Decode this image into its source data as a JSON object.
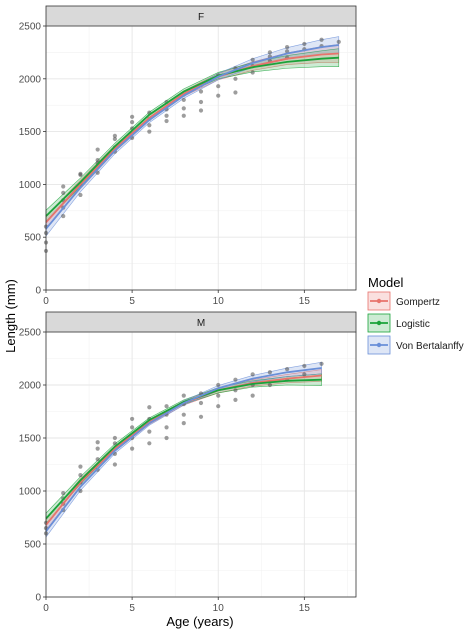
{
  "chart_data": {
    "type": "line",
    "title": "",
    "xlabel": "Age (years)",
    "ylabel": "Length (mm)",
    "xlim": [
      0,
      18
    ],
    "ylim": [
      0,
      2500
    ],
    "x_ticks": [
      0,
      5,
      10,
      15
    ],
    "y_ticks": [
      0,
      500,
      1000,
      1500,
      2000,
      2500
    ],
    "grid": true,
    "legend": {
      "title": "Model",
      "placement": "right",
      "entries": [
        "Gompertz",
        "Logistic",
        "Von Bertalanffy"
      ]
    },
    "colors": {
      "Gompertz": "#e8736c",
      "Logistic": "#1aa33a",
      "Von Bertalanffy": "#6a8fd8",
      "points": "#4d4d4d",
      "strip": "#d9d9d9"
    },
    "panels": [
      {
        "label": "F",
        "series": [
          {
            "name": "Gompertz",
            "x": [
              0,
              2,
              4,
              6,
              8,
              10,
              12,
              14,
              16,
              17
            ],
            "y": [
              640,
              1000,
              1340,
              1630,
              1860,
              2020,
              2120,
              2190,
              2230,
              2240
            ],
            "band": [
              60,
              40,
              30,
              25,
              25,
              30,
              40,
              55,
              75,
              85
            ]
          },
          {
            "name": "Logistic",
            "x": [
              0,
              2,
              4,
              6,
              8,
              10,
              12,
              14,
              16,
              17
            ],
            "y": [
              700,
              1020,
              1360,
              1660,
              1880,
              2030,
              2110,
              2160,
              2190,
              2200
            ],
            "band": [
              55,
              40,
              30,
              25,
              25,
              30,
              45,
              60,
              75,
              85
            ]
          },
          {
            "name": "Von Bertalanffy",
            "x": [
              0,
              2,
              4,
              6,
              8,
              10,
              12,
              14,
              16,
              17
            ],
            "y": [
              580,
              970,
              1320,
              1610,
              1840,
              2020,
              2150,
              2240,
              2300,
              2320
            ],
            "band": [
              70,
              40,
              30,
              25,
              25,
              30,
              40,
              55,
              70,
              80
            ]
          }
        ],
        "points": {
          "x": [
            0,
            0,
            0,
            0,
            1,
            1,
            1,
            1,
            1,
            2,
            2,
            2,
            2,
            3,
            3,
            3,
            3,
            4,
            4,
            4,
            4,
            5,
            5,
            5,
            5,
            5,
            6,
            6,
            6,
            6,
            7,
            7,
            7,
            7,
            8,
            8,
            8,
            8,
            9,
            9,
            9,
            9,
            10,
            10,
            10,
            11,
            11,
            11,
            12,
            12,
            12,
            13,
            13,
            13,
            14,
            14,
            14,
            15,
            15,
            16,
            16,
            17
          ],
          "y": [
            370,
            450,
            540,
            600,
            700,
            780,
            850,
            920,
            980,
            900,
            1000,
            1090,
            1100,
            1110,
            1200,
            1230,
            1330,
            1310,
            1350,
            1430,
            1460,
            1440,
            1480,
            1530,
            1590,
            1640,
            1500,
            1560,
            1620,
            1680,
            1600,
            1650,
            1710,
            1780,
            1650,
            1720,
            1800,
            1850,
            1700,
            1780,
            1880,
            1940,
            1840,
            1930,
            2030,
            1870,
            2000,
            2100,
            2060,
            2120,
            2180,
            2170,
            2210,
            2250,
            2200,
            2260,
            2300,
            2280,
            2330,
            2310,
            2370,
            2350
          ]
        }
      },
      {
        "label": "M",
        "series": [
          {
            "name": "Gompertz",
            "x": [
              0,
              2,
              4,
              6,
              8,
              10,
              12,
              14,
              16
            ],
            "y": [
              680,
              1080,
              1400,
              1650,
              1830,
              1950,
              2020,
              2060,
              2090
            ],
            "band": [
              50,
              35,
              25,
              20,
              20,
              25,
              30,
              40,
              55
            ]
          },
          {
            "name": "Logistic",
            "x": [
              0,
              2,
              4,
              6,
              8,
              10,
              12,
              14,
              16
            ],
            "y": [
              740,
              1100,
              1420,
              1670,
              1840,
              1950,
              2010,
              2040,
              2050
            ],
            "band": [
              50,
              35,
              25,
              20,
              20,
              25,
              30,
              40,
              55
            ]
          },
          {
            "name": "Von Bertalanffy",
            "x": [
              0,
              2,
              4,
              6,
              8,
              10,
              12,
              14,
              16
            ],
            "y": [
              620,
              1040,
              1380,
              1640,
              1830,
              1970,
              2060,
              2120,
              2160
            ],
            "band": [
              55,
              35,
              25,
              20,
              20,
              25,
              30,
              40,
              55
            ]
          }
        ],
        "points": {
          "x": [
            0,
            0,
            0,
            1,
            1,
            1,
            1,
            2,
            2,
            2,
            2,
            3,
            3,
            3,
            3,
            4,
            4,
            4,
            4,
            5,
            5,
            5,
            5,
            6,
            6,
            6,
            6,
            7,
            7,
            7,
            7,
            8,
            8,
            8,
            8,
            9,
            9,
            9,
            10,
            10,
            10,
            11,
            11,
            11,
            12,
            12,
            12,
            13,
            13,
            14,
            14,
            15,
            15,
            16
          ],
          "y": [
            600,
            650,
            700,
            820,
            880,
            930,
            980,
            1000,
            1080,
            1150,
            1230,
            1200,
            1300,
            1400,
            1460,
            1250,
            1350,
            1450,
            1500,
            1400,
            1500,
            1600,
            1680,
            1450,
            1560,
            1680,
            1790,
            1500,
            1600,
            1720,
            1800,
            1640,
            1720,
            1820,
            1900,
            1700,
            1830,
            1920,
            1800,
            1900,
            2000,
            1860,
            1950,
            2050,
            1900,
            2000,
            2100,
            2000,
            2120,
            2050,
            2150,
            2100,
            2180,
            2200
          ]
        }
      }
    ]
  }
}
